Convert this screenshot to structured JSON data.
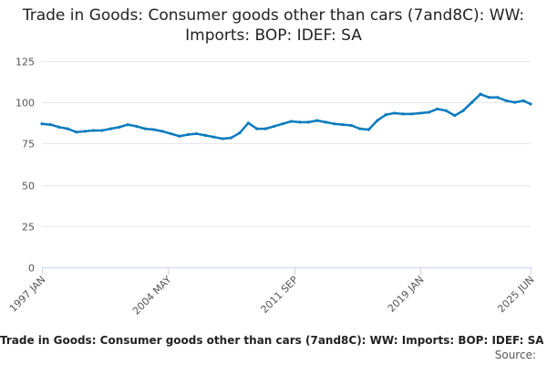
{
  "chart_data": {
    "type": "line",
    "title": "Trade in Goods: Consumer goods other than cars (7and8C): WW: Imports: BOP: IDEF: SA",
    "xlabel": "",
    "ylabel": "",
    "ylim": [
      0,
      125
    ],
    "yticks": [
      0,
      25,
      50,
      75,
      100,
      125
    ],
    "xlim": [
      "1997-01",
      "2025-06"
    ],
    "xticks": [
      {
        "label": "1997 JAN",
        "date": "1997-01"
      },
      {
        "label": "2004 MAY",
        "date": "2004-05"
      },
      {
        "label": "2011 SEP",
        "date": "2011-09"
      },
      {
        "label": "2019 JAN",
        "date": "2019-01"
      },
      {
        "label": "2025 JUN",
        "date": "2025-06"
      }
    ],
    "grid": true,
    "legend": "none",
    "series": [
      {
        "color": "#0a7bbd",
        "points": [
          [
            "1997-01",
            87
          ],
          [
            "1997-07",
            86.5
          ],
          [
            "1998-01",
            85
          ],
          [
            "1998-07",
            84
          ],
          [
            "1999-01",
            82
          ],
          [
            "1999-07",
            82.5
          ],
          [
            "2000-01",
            83
          ],
          [
            "2000-07",
            83
          ],
          [
            "2001-01",
            84
          ],
          [
            "2001-07",
            85
          ],
          [
            "2002-01",
            86.5
          ],
          [
            "2002-07",
            85.5
          ],
          [
            "2003-01",
            84
          ],
          [
            "2003-07",
            83.5
          ],
          [
            "2004-01",
            82.5
          ],
          [
            "2004-07",
            81
          ],
          [
            "2005-01",
            79.5
          ],
          [
            "2005-07",
            80.5
          ],
          [
            "2006-01",
            81
          ],
          [
            "2006-07",
            80
          ],
          [
            "2007-01",
            79
          ],
          [
            "2007-07",
            78
          ],
          [
            "2008-01",
            78.5
          ],
          [
            "2008-07",
            81.5
          ],
          [
            "2009-01",
            87.5
          ],
          [
            "2009-07",
            84
          ],
          [
            "2010-01",
            84
          ],
          [
            "2010-07",
            85.5
          ],
          [
            "2011-01",
            87
          ],
          [
            "2011-07",
            88.5
          ],
          [
            "2012-01",
            88
          ],
          [
            "2012-07",
            88
          ],
          [
            "2013-01",
            89
          ],
          [
            "2013-07",
            88
          ],
          [
            "2014-01",
            87
          ],
          [
            "2014-07",
            86.5
          ],
          [
            "2015-01",
            86
          ],
          [
            "2015-07",
            84
          ],
          [
            "2016-01",
            83.5
          ],
          [
            "2016-07",
            89
          ],
          [
            "2017-01",
            92.5
          ],
          [
            "2017-07",
            93.5
          ],
          [
            "2018-01",
            93
          ],
          [
            "2018-07",
            93
          ],
          [
            "2019-01",
            93.5
          ],
          [
            "2019-07",
            94
          ],
          [
            "2020-01",
            96
          ],
          [
            "2020-07",
            95
          ],
          [
            "2021-01",
            92
          ],
          [
            "2021-07",
            95
          ],
          [
            "2022-01",
            100
          ],
          [
            "2022-07",
            105
          ],
          [
            "2023-01",
            103
          ],
          [
            "2023-07",
            103
          ],
          [
            "2024-01",
            101
          ],
          [
            "2024-07",
            100
          ],
          [
            "2025-01",
            101
          ],
          [
            "2025-06",
            99
          ]
        ]
      }
    ]
  },
  "footer": {
    "caption": "Trade in Goods: Consumer goods other than cars (7and8C): WW: Imports: BOP: IDEF: SA",
    "source": "Source:"
  }
}
